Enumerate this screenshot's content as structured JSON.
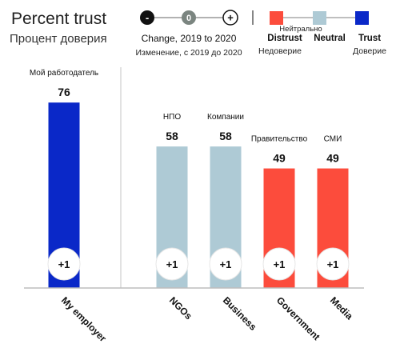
{
  "chart_data": {
    "type": "bar",
    "title": "Percent trust",
    "subtitle": "Процент доверия",
    "categories": [
      "My employer",
      "NGOs",
      "Business",
      "Government",
      "Media"
    ],
    "categories_ru": [
      "Мой работодатель",
      "НПО",
      "Компании",
      "Правительство",
      "СМИ"
    ],
    "values": [
      76,
      58,
      58,
      49,
      49
    ],
    "change": [
      "+1",
      "+1",
      "+1",
      "+1",
      "+1"
    ],
    "trust_level": [
      "Trust",
      "Neutral",
      "Neutral",
      "Distrust",
      "Distrust"
    ],
    "ylim": [
      0,
      100
    ],
    "grid": false
  },
  "change_legend": {
    "minus": "-",
    "zero": "0",
    "plus": "+",
    "label": "Change, 2019 to 2020",
    "label_ru": "Изменение, с 2019 до 2020"
  },
  "trust_legend": {
    "distrust": "Distrust",
    "distrust_ru": "Недоверие",
    "neutral": "Neutral",
    "neutral_ru": "Нейтрально",
    "trust": "Trust",
    "trust_ru": "Доверие"
  },
  "colors": {
    "Trust": "#0a28c8",
    "Neutral": "#aecad5",
    "Distrust": "#fc4c3c"
  }
}
